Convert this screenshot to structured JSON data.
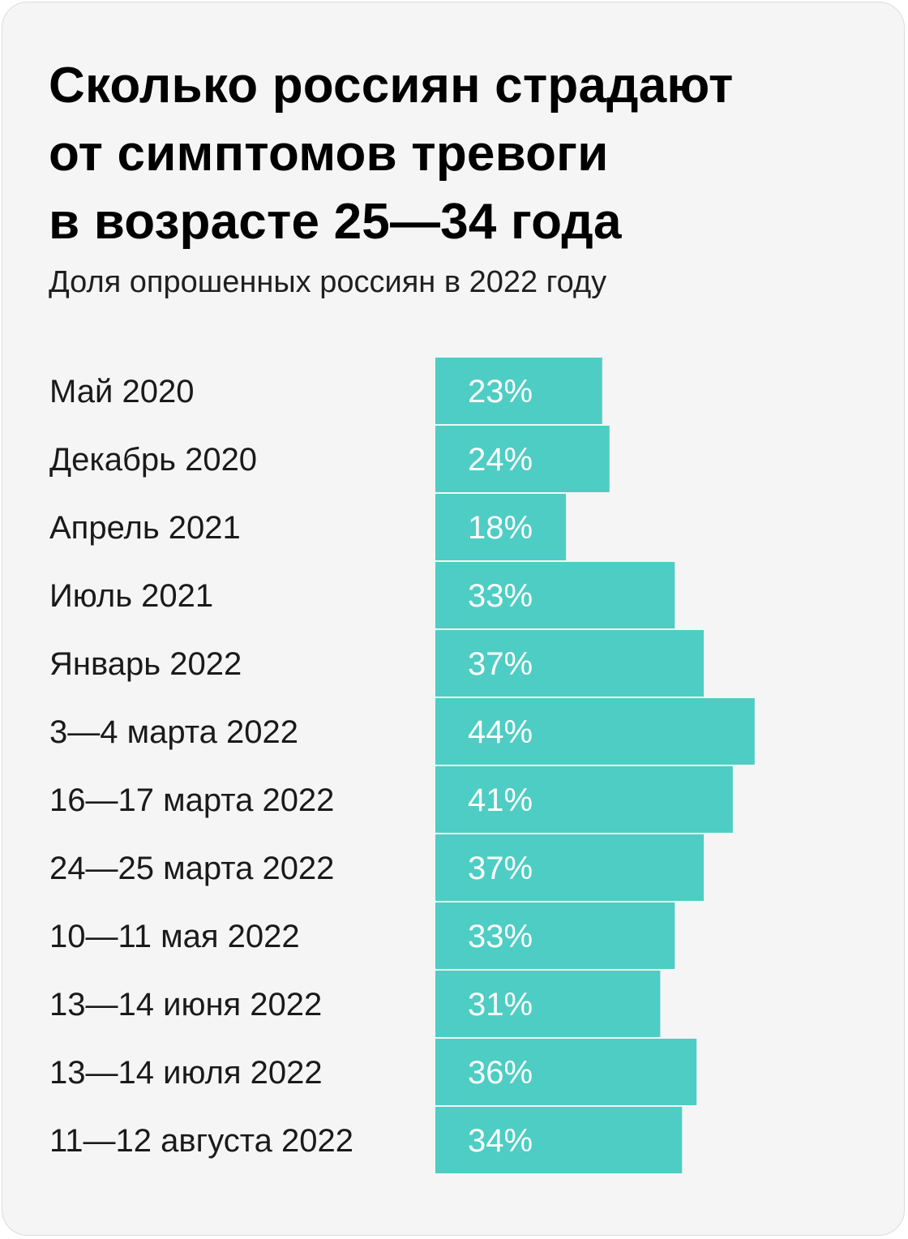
{
  "colors": {
    "background": "#f5f5f5",
    "bar": "#4ecdc4",
    "bar_label": "#ffffff",
    "text": "#1a1a1a"
  },
  "chart_data": {
    "type": "bar",
    "orientation": "horizontal",
    "title_lines": [
      "Сколько россиян страдают",
      "от симптомов тревоги",
      "в возрасте 25—34 года"
    ],
    "subtitle": "Доля опрошенных россиян в 2022 году",
    "categories": [
      "Май 2020",
      "Декабрь 2020",
      "Апрель 2021",
      "Июль 2021",
      "Январь 2022",
      "3—4 марта 2022",
      "16—17 марта 2022",
      "24—25 марта 2022",
      "10—11 мая 2022",
      "13—14 июня 2022",
      "13—14 июля 2022",
      "11—12 августа 2022"
    ],
    "values": [
      23,
      24,
      18,
      33,
      37,
      44,
      41,
      37,
      33,
      31,
      36,
      34
    ],
    "value_labels": [
      "23%",
      "24%",
      "18%",
      "33%",
      "37%",
      "44%",
      "41%",
      "37%",
      "33%",
      "31%",
      "36%",
      "34%"
    ],
    "unit": "%",
    "grid": false,
    "legend": "none"
  }
}
